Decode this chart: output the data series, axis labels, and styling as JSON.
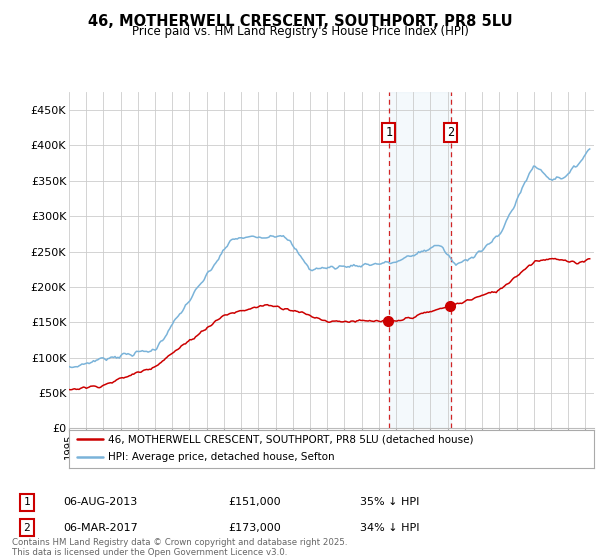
{
  "title": "46, MOTHERWELL CRESCENT, SOUTHPORT, PR8 5LU",
  "subtitle": "Price paid vs. HM Land Registry's House Price Index (HPI)",
  "ylim": [
    0,
    475000
  ],
  "yticks": [
    0,
    50000,
    100000,
    150000,
    200000,
    250000,
    300000,
    350000,
    400000,
    450000
  ],
  "ytick_labels": [
    "£0",
    "£50K",
    "£100K",
    "£150K",
    "£200K",
    "£250K",
    "£300K",
    "£350K",
    "£400K",
    "£450K"
  ],
  "hpi_color": "#7ab3d9",
  "price_color": "#cc0000",
  "shading_color": "#d6e8f5",
  "vline_color": "#cc0000",
  "legend_line1": "46, MOTHERWELL CRESCENT, SOUTHPORT, PR8 5LU (detached house)",
  "legend_line2": "HPI: Average price, detached house, Sefton",
  "ann1_label": "1",
  "ann1_date": "06-AUG-2013",
  "ann1_price": "£151,000",
  "ann1_hpi": "35% ↓ HPI",
  "ann1_year": 2013.583,
  "ann1_value": 151000,
  "ann2_label": "2",
  "ann2_date": "06-MAR-2017",
  "ann2_price": "£173,000",
  "ann2_hpi": "34% ↓ HPI",
  "ann2_year": 2017.167,
  "ann2_value": 173000,
  "footer": "Contains HM Land Registry data © Crown copyright and database right 2025.\nThis data is licensed under the Open Government Licence v3.0.",
  "bg_color": "#ffffff",
  "grid_color": "#cccccc",
  "xmin": 1995,
  "xmax": 2025.5
}
